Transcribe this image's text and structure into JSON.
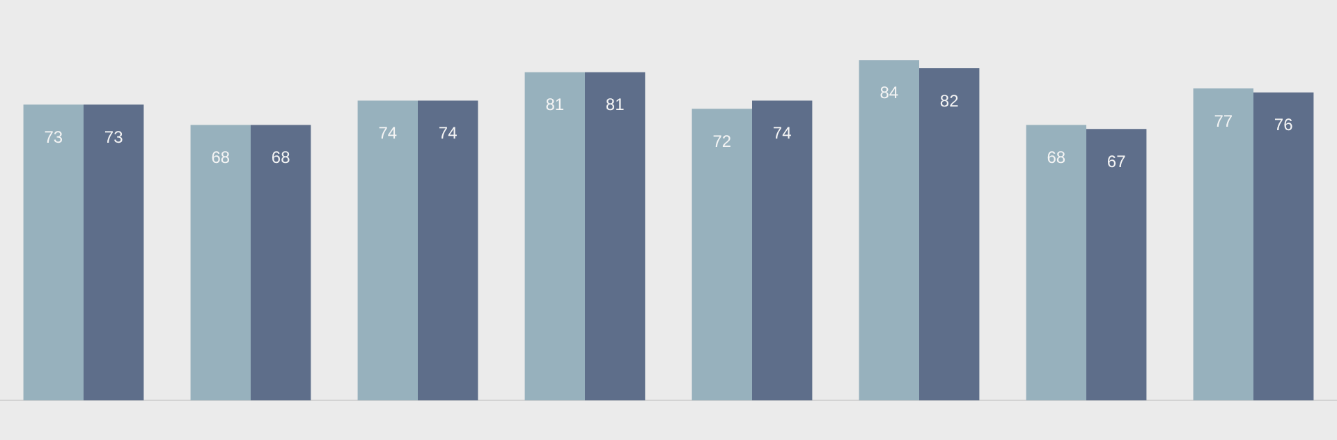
{
  "chart_data": {
    "type": "bar",
    "categories": [
      null,
      null,
      null,
      null,
      null,
      null,
      null,
      null
    ],
    "series": [
      {
        "color": "#97b1bd",
        "values": [
          73,
          68,
          74,
          81,
          72,
          84,
          68,
          77
        ]
      },
      {
        "color": "#5e6e8a",
        "values": [
          73,
          68,
          74,
          81,
          74,
          82,
          67,
          76
        ]
      }
    ],
    "data_labels": true,
    "legend": false
  }
}
